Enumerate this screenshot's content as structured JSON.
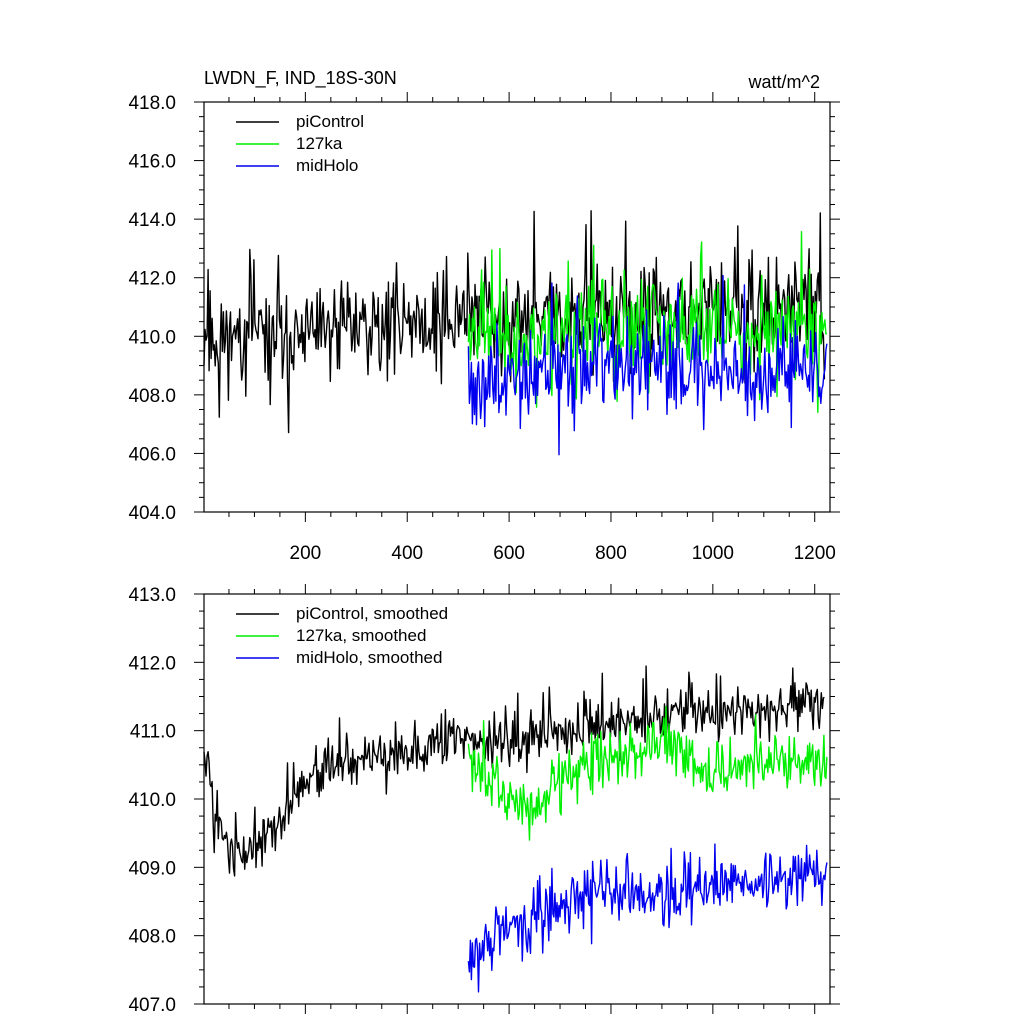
{
  "chart_data": [
    {
      "type": "line",
      "title": "LWDN_F, IND_18S-30N",
      "units": "watt/m^2",
      "xlabel": "",
      "ylabel": "",
      "xlim": [
        1,
        1230
      ],
      "ylim": [
        404.0,
        418.0
      ],
      "xticks": [
        200,
        400,
        600,
        800,
        1000,
        1200
      ],
      "xtick_labels": [
        "200",
        "400",
        "600",
        "800",
        "1000",
        "1200"
      ],
      "yticks": [
        404,
        406,
        408,
        410,
        412,
        414,
        416,
        418
      ],
      "ytick_labels": [
        "404.0",
        "406.0",
        "408.0",
        "410.0",
        "412.0",
        "414.0",
        "416.0",
        "418.0"
      ],
      "legend_position": "top-left",
      "series": [
        {
          "name": "piControl",
          "color": "#000000",
          "x_start": 1,
          "x_end": 1220,
          "anchors": [
            [
              1,
              410.0
            ],
            [
              100,
              409.9
            ],
            [
              250,
              410.2
            ],
            [
              400,
              410.6
            ],
            [
              520,
              410.5
            ],
            [
              600,
              410.6
            ],
            [
              800,
              410.8
            ],
            [
              1000,
              410.9
            ],
            [
              1220,
              410.9
            ]
          ],
          "noise": 1.3,
          "seed": 11
        },
        {
          "name": "127ka",
          "color": "#00ee00",
          "x_start": 520,
          "x_end": 1225,
          "anchors": [
            [
              520,
              410.3
            ],
            [
              600,
              410.0
            ],
            [
              800,
              410.2
            ],
            [
              1000,
              410.3
            ],
            [
              1225,
              410.3
            ]
          ],
          "noise": 1.3,
          "seed": 23
        },
        {
          "name": "midHolo",
          "color": "#0000ee",
          "x_start": 520,
          "x_end": 1225,
          "anchors": [
            [
              520,
              408.3
            ],
            [
              600,
              408.5
            ],
            [
              800,
              408.8
            ],
            [
              1000,
              408.9
            ],
            [
              1225,
              408.9
            ]
          ],
          "noise": 1.3,
          "seed": 37
        }
      ]
    },
    {
      "type": "line",
      "title": "",
      "xlabel": "",
      "ylabel": "",
      "xlim": [
        1,
        1230
      ],
      "ylim": [
        407.0,
        413.0
      ],
      "xticks": [
        200,
        400,
        600,
        800,
        1000,
        1200
      ],
      "yticks": [
        407,
        408,
        409,
        410,
        411,
        412,
        413
      ],
      "ytick_labels": [
        "407.0",
        "408.0",
        "409.0",
        "410.0",
        "411.0",
        "412.0",
        "413.0"
      ],
      "legend_position": "top-left",
      "series": [
        {
          "name": "piControl, smoothed",
          "color": "#000000",
          "x_start": 1,
          "x_end": 1220,
          "anchors": [
            [
              1,
              410.8
            ],
            [
              25,
              409.8
            ],
            [
              60,
              409.2
            ],
            [
              120,
              409.4
            ],
            [
              200,
              410.2
            ],
            [
              260,
              410.6
            ],
            [
              350,
              410.6
            ],
            [
              460,
              410.8
            ],
            [
              540,
              410.8
            ],
            [
              640,
              410.9
            ],
            [
              800,
              411.1
            ],
            [
              1000,
              411.3
            ],
            [
              1220,
              411.4
            ]
          ],
          "noise": 0.32,
          "seed": 5
        },
        {
          "name": "127ka, smoothed",
          "color": "#00ee00",
          "x_start": 520,
          "x_end": 1225,
          "anchors": [
            [
              520,
              410.8
            ],
            [
              560,
              410.2
            ],
            [
              650,
              409.8
            ],
            [
              720,
              410.4
            ],
            [
              800,
              410.6
            ],
            [
              900,
              410.8
            ],
            [
              1000,
              410.3
            ],
            [
              1100,
              410.6
            ],
            [
              1225,
              410.5
            ]
          ],
          "noise": 0.32,
          "seed": 17
        },
        {
          "name": "midHolo, smoothed",
          "color": "#0000ee",
          "x_start": 520,
          "x_end": 1225,
          "anchors": [
            [
              520,
              407.5
            ],
            [
              560,
              408.0
            ],
            [
              660,
              408.2
            ],
            [
              760,
              408.7
            ],
            [
              860,
              408.6
            ],
            [
              1000,
              408.7
            ],
            [
              1100,
              408.8
            ],
            [
              1225,
              408.9
            ]
          ],
          "noise": 0.32,
          "seed": 29
        }
      ]
    }
  ]
}
